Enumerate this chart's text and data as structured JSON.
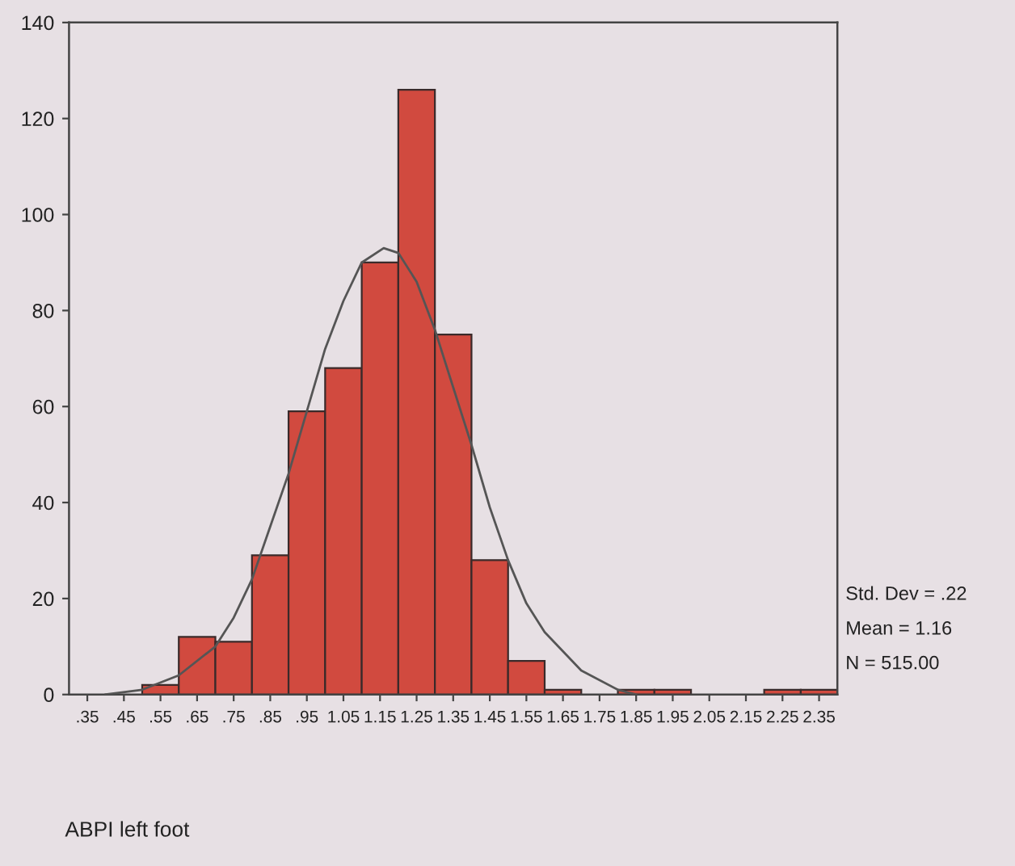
{
  "chart_data": {
    "type": "histogram",
    "xlabel": "ABPI left foot",
    "bins": [
      0.3,
      0.4,
      0.5,
      0.6,
      0.7,
      0.8,
      0.9,
      1.0,
      1.1,
      1.2,
      1.3,
      1.4,
      1.5,
      1.6,
      1.7,
      1.8,
      1.9,
      2.0,
      2.1,
      2.2,
      2.3,
      2.4
    ],
    "series": [
      {
        "type": "histogram",
        "color": "#d14a3f",
        "values": [
          0,
          0,
          2,
          12,
          11,
          29,
          59,
          68,
          90,
          126,
          75,
          28,
          7,
          1,
          0,
          1,
          1,
          0,
          0,
          1,
          1
        ]
      },
      {
        "type": "line",
        "color": "#555555",
        "x": [
          0.4,
          0.5,
          0.6,
          0.7,
          0.75,
          0.8,
          0.85,
          0.9,
          0.95,
          1.0,
          1.05,
          1.1,
          1.16,
          1.2,
          1.25,
          1.3,
          1.35,
          1.4,
          1.45,
          1.5,
          1.55,
          1.6,
          1.7,
          1.8,
          1.85
        ],
        "values": [
          0,
          1,
          4,
          10,
          16,
          24,
          35,
          46,
          59,
          72,
          82,
          90,
          93,
          92,
          86,
          76,
          64,
          52,
          39,
          28,
          19,
          13,
          5,
          1,
          0
        ]
      }
    ],
    "xlim": [
      0.3,
      2.4
    ],
    "xticks": [
      {
        "value": 0.35,
        "label": ".35"
      },
      {
        "value": 0.45,
        "label": ".45"
      },
      {
        "value": 0.55,
        "label": ".55"
      },
      {
        "value": 0.65,
        "label": ".65"
      },
      {
        "value": 0.75,
        "label": ".75"
      },
      {
        "value": 0.85,
        "label": ".85"
      },
      {
        "value": 0.95,
        "label": ".95"
      },
      {
        "value": 1.05,
        "label": "1.05"
      },
      {
        "value": 1.15,
        "label": "1.15"
      },
      {
        "value": 1.25,
        "label": "1.25"
      },
      {
        "value": 1.35,
        "label": "1.35"
      },
      {
        "value": 1.45,
        "label": "1.45"
      },
      {
        "value": 1.55,
        "label": "1.55"
      },
      {
        "value": 1.65,
        "label": "1.65"
      },
      {
        "value": 1.75,
        "label": "1.75"
      },
      {
        "value": 1.85,
        "label": "1.85"
      },
      {
        "value": 1.95,
        "label": "1.95"
      },
      {
        "value": 2.05,
        "label": "2.05"
      },
      {
        "value": 2.15,
        "label": "2.15"
      },
      {
        "value": 2.25,
        "label": "2.25"
      },
      {
        "value": 2.35,
        "label": "2.35"
      }
    ],
    "ylim": [
      0,
      140
    ],
    "yticks": [
      0,
      20,
      40,
      60,
      80,
      100,
      120,
      140
    ],
    "grid": false,
    "legend": false,
    "annotations": [
      "Std. Dev = .22",
      "Mean = 1.16",
      "N = 515.00"
    ]
  }
}
